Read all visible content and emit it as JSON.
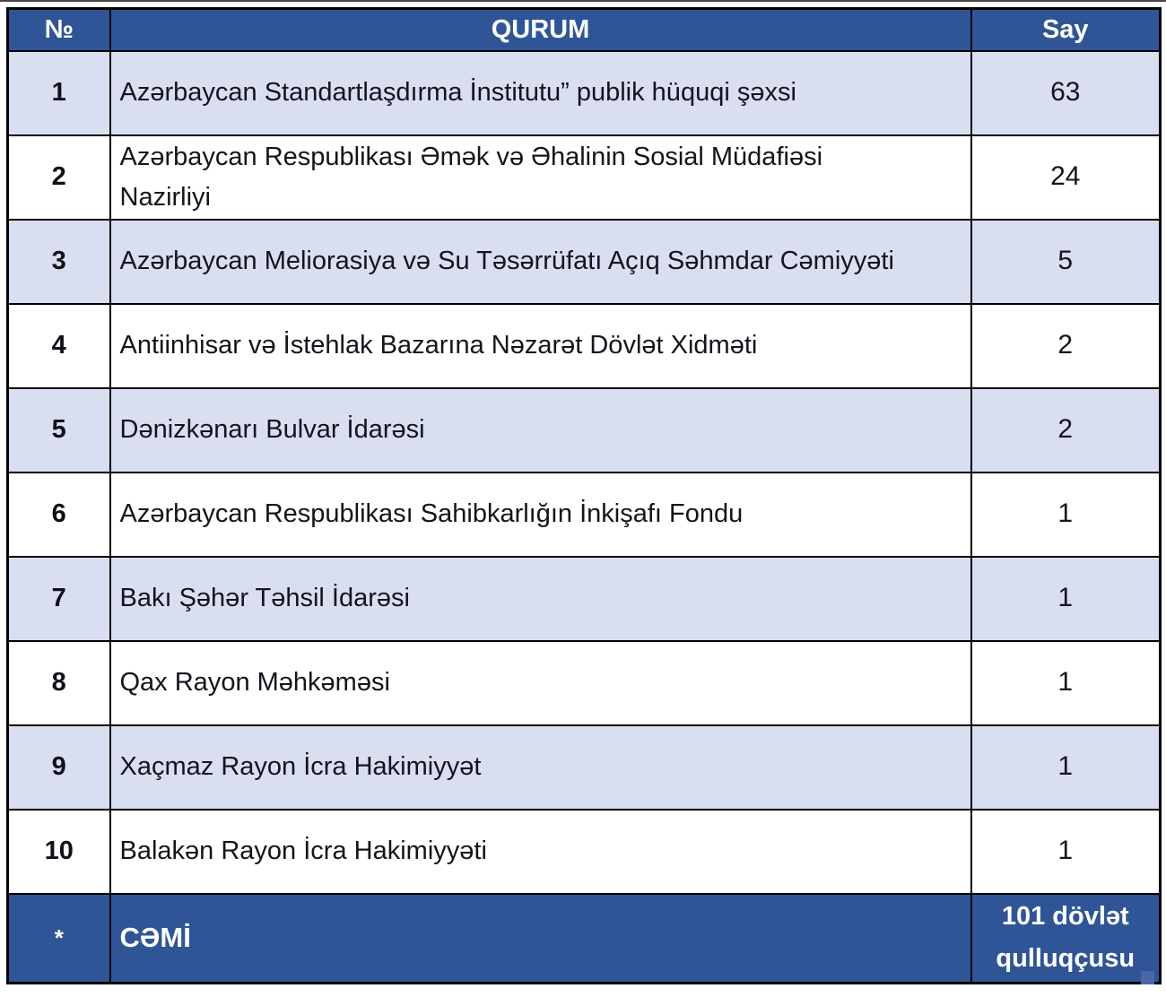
{
  "table": {
    "headers": {
      "num": "№",
      "qurum": "QURUM",
      "say": "Say"
    },
    "rows": [
      {
        "num": "1",
        "qurum": "Azərbaycan Standartlaşdırma İnstitutu” publik hüquqi şəxsi",
        "say": "63"
      },
      {
        "num": "2",
        "qurum": "Azərbaycan Respublikası Əmək və Əhalinin Sosial Müdafiəsi\nNazirliyi",
        "say": "24"
      },
      {
        "num": "3",
        "qurum": "Azərbaycan Meliorasiya və Su Təsərrüfatı Açıq Səhmdar Cəmiyyəti",
        "say": "5"
      },
      {
        "num": "4",
        "qurum": "Antiinhisar və İstehlak Bazarına Nəzarət Dövlət Xidməti",
        "say": "2"
      },
      {
        "num": "5",
        "qurum": "Dənizkənarı Bulvar İdarəsi",
        "say": "2"
      },
      {
        "num": "6",
        "qurum": "Azərbaycan Respublikası Sahibkarlığın İnkişafı Fondu",
        "say": "1"
      },
      {
        "num": "7",
        "qurum": "Bakı Şəhər Təhsil İdarəsi",
        "say": "1"
      },
      {
        "num": "8",
        "qurum": "Qax Rayon Məhkəməsi",
        "say": "1"
      },
      {
        "num": "9",
        "qurum": "Xaçmaz Rayon İcra Hakimiyyət",
        "say": "1"
      },
      {
        "num": "10",
        "qurum": "Balakən Rayon İcra Hakimiyyəti",
        "say": "1"
      }
    ],
    "footer": {
      "num": "*",
      "label": "CƏMİ",
      "total": "101 dövlət\nqulluqçusu"
    }
  },
  "colors": {
    "header_bg": "#2F5597",
    "row_alt_bg": "#D9DFF1",
    "row_bg": "#FFFFFF",
    "border": "#000000",
    "header_text": "#FFFFFF",
    "body_text": "#14141C"
  }
}
